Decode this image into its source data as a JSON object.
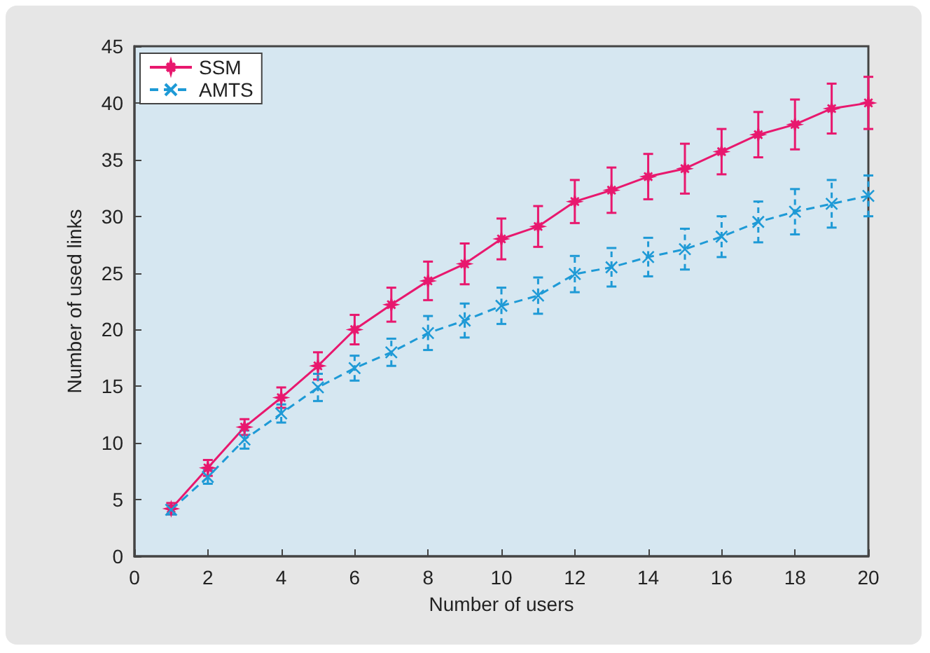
{
  "chart_data": {
    "type": "line",
    "xlabel": "Number of users",
    "ylabel": "Number of used links",
    "x": [
      1,
      2,
      3,
      4,
      5,
      6,
      7,
      8,
      9,
      10,
      11,
      12,
      13,
      14,
      15,
      16,
      17,
      18,
      19,
      20
    ],
    "xlim": [
      0,
      20
    ],
    "xticks": [
      0,
      2,
      4,
      6,
      8,
      10,
      12,
      14,
      16,
      18,
      20
    ],
    "ylim": [
      0,
      45
    ],
    "yticks": [
      0,
      5,
      10,
      15,
      20,
      25,
      30,
      35,
      40,
      45
    ],
    "grid": false,
    "legend": "top left",
    "series": [
      {
        "name": "SSM",
        "color": "#e8186e",
        "marker": "star",
        "line_style": "solid",
        "values": [
          4.2,
          7.8,
          11.4,
          14,
          16.8,
          20,
          22.2,
          24.3,
          25.8,
          28,
          29.1,
          31.3,
          32.3,
          33.5,
          34.2,
          35.7,
          37.2,
          38.1,
          39.5,
          40
        ],
        "errors": [
          0.5,
          0.7,
          0.7,
          0.9,
          1.2,
          1.3,
          1.5,
          1.7,
          1.8,
          1.8,
          1.8,
          1.9,
          2,
          2,
          2.2,
          2,
          2,
          2.2,
          2.2,
          2.3
        ]
      },
      {
        "name": "AMTS",
        "color": "#1e9ad6",
        "marker": "cross",
        "line_style": "dashed",
        "values": [
          4.1,
          7,
          10.3,
          12.6,
          14.9,
          16.6,
          18,
          19.7,
          20.8,
          22.1,
          23,
          24.9,
          25.5,
          26.4,
          27.1,
          28.2,
          29.5,
          30.4,
          31.1,
          31.8
        ],
        "errors": [
          0.4,
          0.6,
          0.8,
          0.8,
          1.2,
          1.1,
          1.2,
          1.5,
          1.5,
          1.6,
          1.6,
          1.6,
          1.7,
          1.7,
          1.8,
          1.8,
          1.8,
          2,
          2.1,
          1.8
        ]
      }
    ]
  }
}
